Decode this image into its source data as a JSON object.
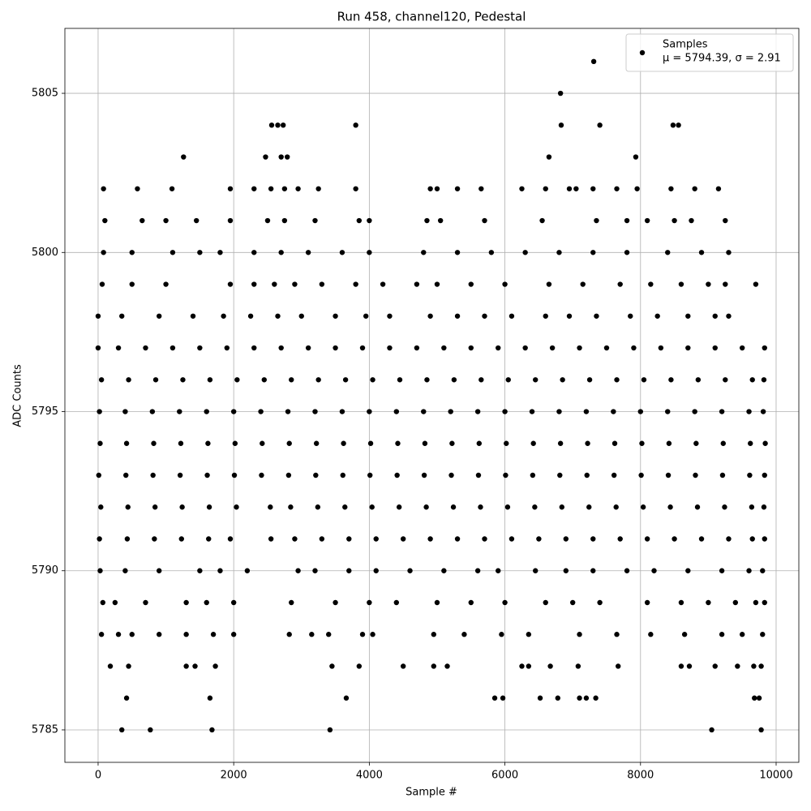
{
  "chart_data": {
    "type": "scatter",
    "title": "Run 458, channel120, Pedestal",
    "x_label": "Sample #",
    "y_label": "ADC Counts",
    "xlim": [
      -490,
      10335
    ],
    "ylim": [
      5783.98,
      5807.04
    ],
    "xticks": [
      0,
      2000,
      4000,
      6000,
      8000,
      10000
    ],
    "yticks": [
      5785,
      5790,
      5795,
      5800,
      5805
    ],
    "grid": true,
    "legend": "upper right",
    "legend_note": "μ = 5794.39, σ = 2.91",
    "series": [
      {
        "name": "Samples",
        "color": "#000000",
        "x": [
          0,
          300,
          700,
          1100,
          1500,
          1900,
          2300,
          2700,
          3100,
          3500,
          3900,
          4300,
          4700,
          5100,
          5500,
          5900,
          6300,
          6700,
          7100,
          7500,
          7900,
          8300,
          8700,
          9100,
          9500,
          9830,
          50,
          450,
          850,
          1250,
          1650,
          2050,
          2450,
          2850,
          3250,
          3650,
          4050,
          4450,
          4850,
          5250,
          5650,
          6050,
          6450,
          6850,
          7250,
          7650,
          8050,
          8450,
          8850,
          9250,
          9650,
          9820,
          20,
          400,
          800,
          1200,
          1600,
          2000,
          2400,
          2800,
          3200,
          3600,
          4000,
          4400,
          4800,
          5200,
          5600,
          6000,
          6400,
          6800,
          7200,
          7600,
          8000,
          8400,
          8800,
          9200,
          9600,
          9810,
          30,
          420,
          820,
          1220,
          1620,
          2020,
          2420,
          2820,
          3220,
          3620,
          4020,
          4420,
          4820,
          5220,
          5620,
          6020,
          6420,
          6820,
          7220,
          7620,
          8020,
          8420,
          8820,
          9220,
          9620,
          9840,
          10,
          410,
          810,
          1210,
          1610,
          2010,
          2410,
          2810,
          3210,
          3610,
          4010,
          4410,
          4810,
          5210,
          5610,
          6010,
          6410,
          6810,
          7210,
          7610,
          8010,
          8410,
          8810,
          9210,
          9610,
          9830,
          40,
          440,
          840,
          1240,
          1640,
          2040,
          2540,
          2840,
          3240,
          3640,
          4040,
          4440,
          4840,
          5240,
          5640,
          6040,
          6440,
          6840,
          7240,
          7640,
          8040,
          8440,
          8840,
          9240,
          9640,
          9820,
          20,
          430,
          830,
          1230,
          1630,
          1950,
          2550,
          2900,
          3300,
          3700,
          4100,
          4500,
          4900,
          5300,
          5700,
          6100,
          6500,
          6900,
          7300,
          7700,
          8100,
          8500,
          8900,
          9300,
          9650,
          9830,
          0,
          350,
          900,
          1400,
          1850,
          2250,
          2650,
          3000,
          3500,
          3950,
          4300,
          4900,
          5300,
          5700,
          6100,
          6600,
          6950,
          7350,
          7850,
          8250,
          8700,
          9100,
          9300,
          60,
          500,
          1000,
          1950,
          2300,
          2600,
          2900,
          3300,
          3800,
          4200,
          4700,
          5000,
          5500,
          6000,
          6650,
          7150,
          7700,
          8150,
          8600,
          9000,
          9250,
          9700,
          30,
          400,
          900,
          1500,
          1800,
          2200,
          2950,
          3200,
          3700,
          4100,
          4600,
          5100,
          5600,
          5900,
          6450,
          6900,
          7300,
          7800,
          8200,
          8700,
          9200,
          9600,
          9800,
          70,
          250,
          700,
          1300,
          1600,
          2000,
          2850,
          3500,
          4000,
          4400,
          5000,
          5500,
          6000,
          6600,
          7000,
          7400,
          8100,
          8600,
          9000,
          9400,
          9700,
          9830,
          80,
          500,
          1100,
          1500,
          1800,
          2300,
          2700,
          3100,
          3600,
          4000,
          4800,
          5300,
          5800,
          6300,
          6800,
          7300,
          7800,
          8400,
          8900,
          9300,
          50,
          300,
          500,
          900,
          1300,
          1700,
          2000,
          2820,
          3150,
          3400,
          3900,
          4050,
          4950,
          5400,
          5950,
          6350,
          7100,
          7650,
          8150,
          8650,
          9200,
          9500,
          9800,
          100,
          650,
          1000,
          1450,
          1950,
          2500,
          2750,
          3200,
          3850,
          4000,
          4850,
          5050,
          5700,
          6550,
          7350,
          7800,
          8100,
          8500,
          8750,
          9250,
          80,
          580,
          1090,
          1950,
          2300,
          2550,
          2750,
          2950,
          3250,
          3800,
          4900,
          5000,
          5300,
          5650,
          6250,
          6600,
          6950,
          7050,
          7300,
          7650,
          7950,
          8450,
          8800,
          9150,
          180,
          450,
          1300,
          1430,
          1730,
          3450,
          3850,
          4500,
          4950,
          5150,
          6250,
          6350,
          6670,
          7080,
          7670,
          8600,
          8720,
          9100,
          9430,
          9670,
          9780,
          420,
          1650,
          3660,
          5850,
          5970,
          6520,
          6780,
          7100,
          7200,
          7340,
          9680,
          9750,
          350,
          770,
          1680,
          3420,
          9050,
          9780,
          1260,
          2470,
          2700,
          2790,
          6650,
          7930,
          2560,
          2650,
          2730,
          3800,
          6830,
          7400,
          8480,
          8560,
          6820,
          7310
        ],
        "values": [
          5797,
          5797,
          5797,
          5797,
          5797,
          5797,
          5797,
          5797,
          5797,
          5797,
          5797,
          5797,
          5797,
          5797,
          5797,
          5797,
          5797,
          5797,
          5797,
          5797,
          5797,
          5797,
          5797,
          5797,
          5797,
          5797,
          5796,
          5796,
          5796,
          5796,
          5796,
          5796,
          5796,
          5796,
          5796,
          5796,
          5796,
          5796,
          5796,
          5796,
          5796,
          5796,
          5796,
          5796,
          5796,
          5796,
          5796,
          5796,
          5796,
          5796,
          5796,
          5796,
          5795,
          5795,
          5795,
          5795,
          5795,
          5795,
          5795,
          5795,
          5795,
          5795,
          5795,
          5795,
          5795,
          5795,
          5795,
          5795,
          5795,
          5795,
          5795,
          5795,
          5795,
          5795,
          5795,
          5795,
          5795,
          5795,
          5794,
          5794,
          5794,
          5794,
          5794,
          5794,
          5794,
          5794,
          5794,
          5794,
          5794,
          5794,
          5794,
          5794,
          5794,
          5794,
          5794,
          5794,
          5794,
          5794,
          5794,
          5794,
          5794,
          5794,
          5794,
          5794,
          5793,
          5793,
          5793,
          5793,
          5793,
          5793,
          5793,
          5793,
          5793,
          5793,
          5793,
          5793,
          5793,
          5793,
          5793,
          5793,
          5793,
          5793,
          5793,
          5793,
          5793,
          5793,
          5793,
          5793,
          5793,
          5793,
          5792,
          5792,
          5792,
          5792,
          5792,
          5792,
          5792,
          5792,
          5792,
          5792,
          5792,
          5792,
          5792,
          5792,
          5792,
          5792,
          5792,
          5792,
          5792,
          5792,
          5792,
          5792,
          5792,
          5792,
          5792,
          5792,
          5791,
          5791,
          5791,
          5791,
          5791,
          5791,
          5791,
          5791,
          5791,
          5791,
          5791,
          5791,
          5791,
          5791,
          5791,
          5791,
          5791,
          5791,
          5791,
          5791,
          5791,
          5791,
          5791,
          5791,
          5791,
          5791,
          5798,
          5798,
          5798,
          5798,
          5798,
          5798,
          5798,
          5798,
          5798,
          5798,
          5798,
          5798,
          5798,
          5798,
          5798,
          5798,
          5798,
          5798,
          5798,
          5798,
          5798,
          5798,
          5798,
          5799,
          5799,
          5799,
          5799,
          5799,
          5799,
          5799,
          5799,
          5799,
          5799,
          5799,
          5799,
          5799,
          5799,
          5799,
          5799,
          5799,
          5799,
          5799,
          5799,
          5799,
          5799,
          5790,
          5790,
          5790,
          5790,
          5790,
          5790,
          5790,
          5790,
          5790,
          5790,
          5790,
          5790,
          5790,
          5790,
          5790,
          5790,
          5790,
          5790,
          5790,
          5790,
          5790,
          5790,
          5790,
          5789,
          5789,
          5789,
          5789,
          5789,
          5789,
          5789,
          5789,
          5789,
          5789,
          5789,
          5789,
          5789,
          5789,
          5789,
          5789,
          5789,
          5789,
          5789,
          5789,
          5789,
          5789,
          5800,
          5800,
          5800,
          5800,
          5800,
          5800,
          5800,
          5800,
          5800,
          5800,
          5800,
          5800,
          5800,
          5800,
          5800,
          5800,
          5800,
          5800,
          5800,
          5800,
          5788,
          5788,
          5788,
          5788,
          5788,
          5788,
          5788,
          5788,
          5788,
          5788,
          5788,
          5788,
          5788,
          5788,
          5788,
          5788,
          5788,
          5788,
          5788,
          5788,
          5788,
          5788,
          5788,
          5801,
          5801,
          5801,
          5801,
          5801,
          5801,
          5801,
          5801,
          5801,
          5801,
          5801,
          5801,
          5801,
          5801,
          5801,
          5801,
          5801,
          5801,
          5801,
          5801,
          5802,
          5802,
          5802,
          5802,
          5802,
          5802,
          5802,
          5802,
          5802,
          5802,
          5802,
          5802,
          5802,
          5802,
          5802,
          5802,
          5802,
          5802,
          5802,
          5802,
          5802,
          5802,
          5802,
          5802,
          5787,
          5787,
          5787,
          5787,
          5787,
          5787,
          5787,
          5787,
          5787,
          5787,
          5787,
          5787,
          5787,
          5787,
          5787,
          5787,
          5787,
          5787,
          5787,
          5787,
          5787,
          5786,
          5786,
          5786,
          5786,
          5786,
          5786,
          5786,
          5786,
          5786,
          5786,
          5786,
          5786,
          5785,
          5785,
          5785,
          5785,
          5785,
          5785,
          5803,
          5803,
          5803,
          5803,
          5803,
          5803,
          5804,
          5804,
          5804,
          5804,
          5804,
          5804,
          5804,
          5804,
          5805,
          5806
        ]
      }
    ]
  }
}
